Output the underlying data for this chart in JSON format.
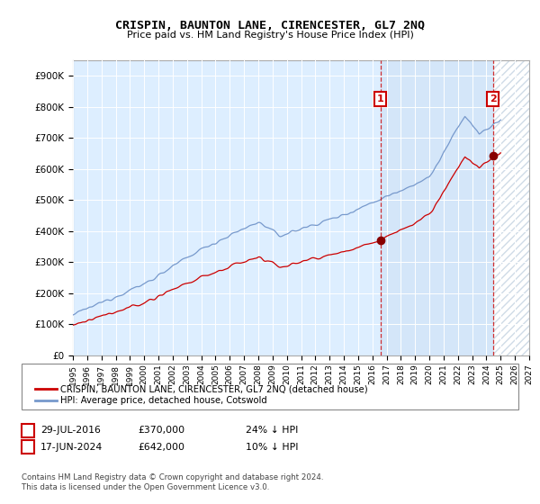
{
  "title": "CRISPIN, BAUNTON LANE, CIRENCESTER, GL7 2NQ",
  "subtitle": "Price paid vs. HM Land Registry's House Price Index (HPI)",
  "ylim": [
    0,
    950000
  ],
  "yticks": [
    0,
    100000,
    200000,
    300000,
    400000,
    500000,
    600000,
    700000,
    800000,
    900000
  ],
  "ytick_labels": [
    "£0",
    "£100K",
    "£200K",
    "£300K",
    "£400K",
    "£500K",
    "£600K",
    "£700K",
    "£800K",
    "£900K"
  ],
  "plot_bg_color": "#ddeeff",
  "hpi_color": "#7799cc",
  "price_color": "#cc0000",
  "sale1_price": 370000,
  "sale1_year": 2016.57,
  "sale2_price": 642000,
  "sale2_year": 2024.46,
  "legend_property": "CRISPIN, BAUNTON LANE, CIRENCESTER, GL7 2NQ (detached house)",
  "legend_hpi": "HPI: Average price, detached house, Cotswold",
  "footnote": "Contains HM Land Registry data © Crown copyright and database right 2024.\nThis data is licensed under the Open Government Licence v3.0.",
  "xmin": 1995,
  "xmax": 2027
}
